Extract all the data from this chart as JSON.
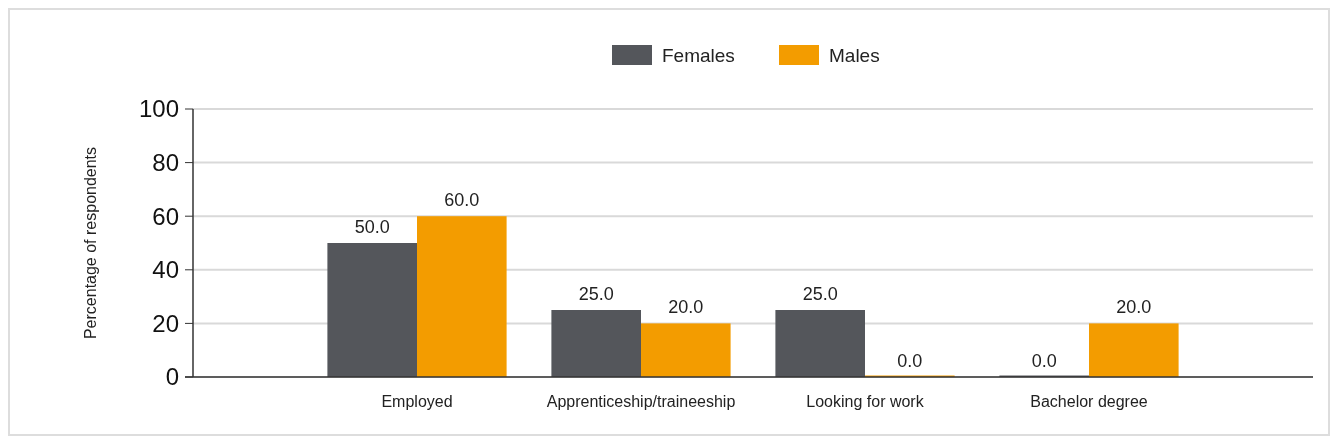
{
  "chart_data": {
    "type": "bar",
    "ylabel": "Percentage of respondents",
    "categories": [
      "Employed",
      "Apprenticeship/traineeship",
      "Looking for work",
      "Bachelor degree"
    ],
    "series": [
      {
        "name": "Females",
        "color": "#54565b",
        "values": [
          50,
          25,
          25,
          0
        ],
        "value_labels": [
          "50.0",
          "25.0",
          "25.0",
          "0.0"
        ]
      },
      {
        "name": "Males",
        "color": "#f39c00",
        "values": [
          60,
          20,
          0,
          20
        ],
        "value_labels": [
          "60.0",
          "20.0",
          "0.0",
          "20.0"
        ]
      }
    ],
    "ylim": [
      0,
      100
    ],
    "yticks": [
      0,
      20,
      40,
      60,
      80,
      100
    ],
    "grid": "y",
    "legend": "top"
  }
}
